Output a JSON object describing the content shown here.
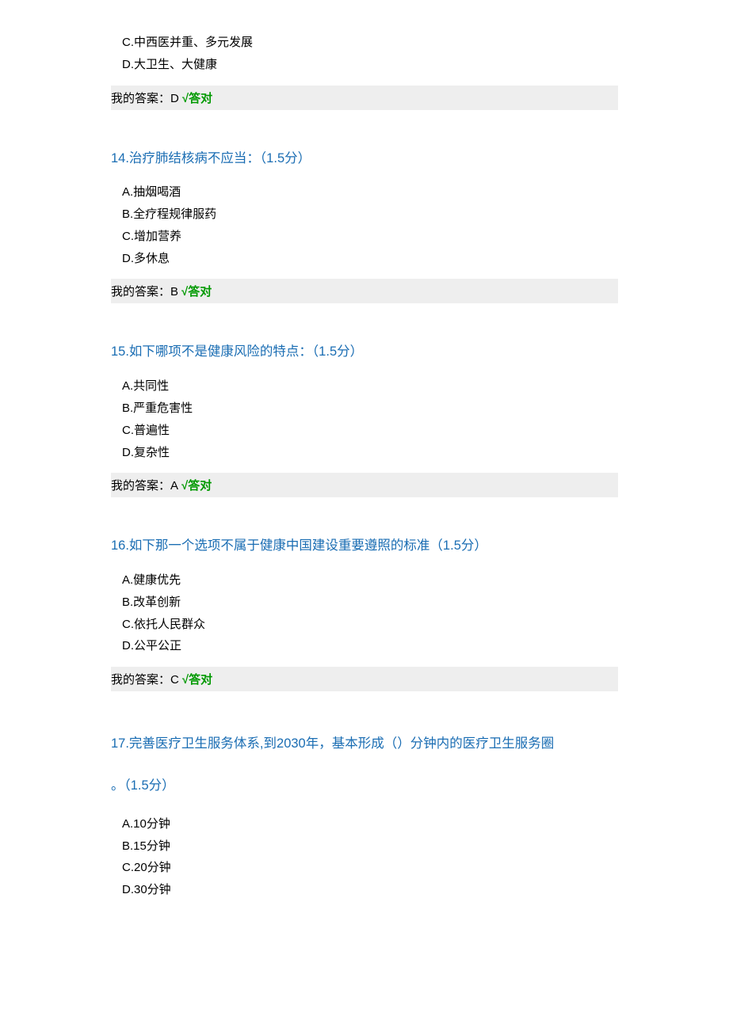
{
  "colors": {
    "question_title": "#1a6db3",
    "correct": "#009900",
    "answer_bg": "#eeeeee",
    "text": "#000000",
    "background": "#ffffff"
  },
  "q13": {
    "options": {
      "c": "C.中西医并重、多元发展",
      "d": "D.大卫生、大健康"
    },
    "answer_label": "我的答案：D ",
    "result": "√答对"
  },
  "q14": {
    "title": "14.治疗肺结核病不应当：（1.5分）",
    "options": {
      "a": "A.抽烟喝酒",
      "b": "B.全疗程规律服药",
      "c": "C.增加营养",
      "d": "D.多休息"
    },
    "answer_label": "我的答案：B ",
    "result": "√答对"
  },
  "q15": {
    "title": "15.如下哪项不是健康风险的特点：（1.5分）",
    "options": {
      "a": "A.共同性",
      "b": "B.严重危害性",
      "c": "C.普遍性",
      "d": "D.复杂性"
    },
    "answer_label": "我的答案：A ",
    "result": "√答对"
  },
  "q16": {
    "title": "16.如下那一个选项不属于健康中国建设重要遵照的标准（1.5分）",
    "options": {
      "a": "A.健康优先",
      "b": "B.改革创新",
      "c": "C.依托人民群众",
      "d": "D.公平公正"
    },
    "answer_label": "我的答案：C ",
    "result": "√答对"
  },
  "q17": {
    "title_line1": "17.完善医疗卫生服务体系,到2030年，基本形成（）分钟内的医疗卫生服务圈",
    "title_line2": "。（1.5分）",
    "options": {
      "a": "A.10分钟",
      "b": "B.15分钟",
      "c": "C.20分钟",
      "d": "D.30分钟"
    }
  }
}
